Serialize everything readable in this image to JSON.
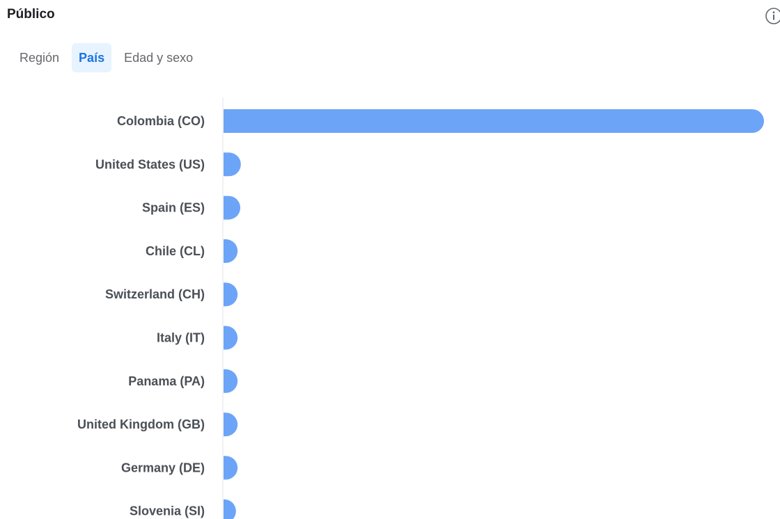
{
  "header": {
    "title": "Público"
  },
  "tabs": [
    {
      "label": "Región",
      "active": false
    },
    {
      "label": "País",
      "active": true
    },
    {
      "label": "Edad y sexo",
      "active": false
    }
  ],
  "icons": {
    "info": "info-icon"
  },
  "colors": {
    "bar": "#6ca4f8",
    "axis": "#e4e6eb",
    "active_tab_bg": "#e7f3ff",
    "active_tab_text": "#1b74e4"
  },
  "chart_data": {
    "type": "bar",
    "orientation": "horizontal",
    "categories": [
      "Colombia (CO)",
      "United States (US)",
      "Spain (ES)",
      "Chile (CL)",
      "Switzerland (CH)",
      "Italy (IT)",
      "Panama (PA)",
      "United Kingdom (GB)",
      "Germany (DE)",
      "Slovenia (SI)"
    ],
    "values": [
      100,
      3.2,
      3.1,
      2.6,
      2.6,
      2.6,
      2.6,
      2.6,
      2.6,
      2.3
    ]
  }
}
